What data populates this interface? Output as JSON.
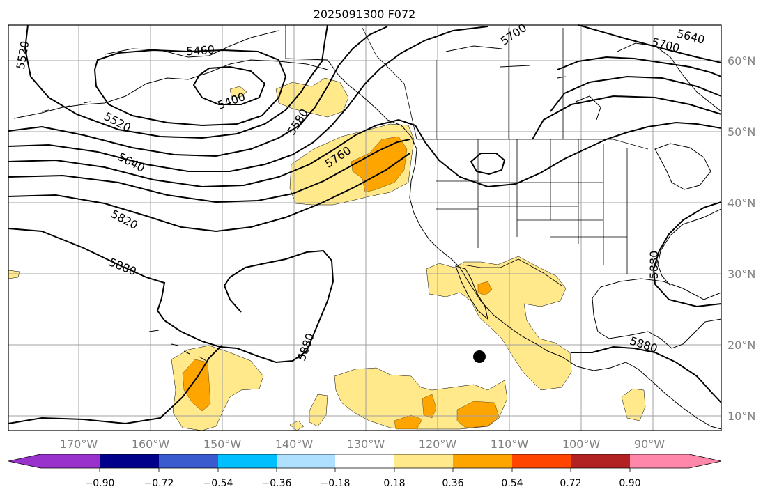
{
  "title": "2025091300 F072",
  "lon_labels": [
    "170°W",
    "160°W",
    "150°W",
    "140°W",
    "130°W",
    "120°W",
    "110°W",
    "100°W",
    "90°W"
  ],
  "lat_labels": [
    "60°N",
    "50°N",
    "40°N",
    "30°N",
    "20°N",
    "10°N"
  ],
  "contour_labels": [
    "5400",
    "5460",
    "5520",
    "5520",
    "5580",
    "5640",
    "5640",
    "5700",
    "5700",
    "5760",
    "5820",
    "5880",
    "5880",
    "5880",
    "5880"
  ],
  "colorbar": {
    "ticks": [
      "−0.90",
      "−0.72",
      "−0.54",
      "−0.36",
      "−0.18",
      "0.18",
      "0.36",
      "0.54",
      "0.72",
      "0.90"
    ],
    "colors": [
      "#9932cc",
      "#00008b",
      "#3a5bcd",
      "#00bfff",
      "#b0e0ff",
      "#ffffff",
      "#ffe98a",
      "#ffa500",
      "#ff4500",
      "#b22222",
      "#ff88aa"
    ]
  },
  "colors": {
    "shade_light": "#ffe98a",
    "shade_mid": "#ffa500"
  }
}
